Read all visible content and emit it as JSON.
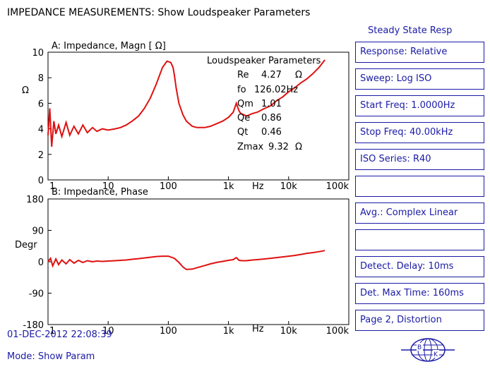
{
  "header": {
    "title": "IMPEDANCE  MEASUREMENTS:  Show  Loudspeaker    Parameters"
  },
  "mode_panel": {
    "label": "Steady State Resp"
  },
  "side_buttons": [
    "Response: Relative",
    "Sweep: Log ISO",
    "Start Freq: 1.0000Hz",
    "Stop Freq:  40.00kHz",
    "ISO Series: R40",
    "",
    "Avg.: Complex Linear",
    "",
    "Detect. Delay: 10ms",
    "Det. Max Time: 160ms",
    "Page 2, Distortion"
  ],
  "footer": {
    "datetime": "01-DEC-2012 22:08:39",
    "mode": "Mode: Show Param",
    "logo_letters": [
      "B",
      "K"
    ]
  },
  "params": {
    "title": "Loudspeaker Parameters",
    "rows": [
      {
        "label": "Re",
        "value": "4.27",
        "unit": "Ω"
      },
      {
        "label": "fo",
        "value": "126.02Hz",
        "unit": ""
      },
      {
        "label": "Qm",
        "value": "1.01",
        "unit": ""
      },
      {
        "label": "Qe",
        "value": "0.86",
        "unit": ""
      },
      {
        "label": "Qt",
        "value": "0.46",
        "unit": ""
      },
      {
        "label": "Zmax",
        "value": "9.32",
        "unit": "Ω"
      }
    ]
  },
  "colors": {
    "trace": "#e01010",
    "accent": "#1a1aa6",
    "axis": "#000000"
  },
  "chart_data": [
    {
      "type": "line",
      "title": "A:   Impedance, Magn [    Ω]",
      "ylabel": "Ω",
      "xlabel": "Hz",
      "xscale": "log",
      "xlim": [
        1,
        100000
      ],
      "ylim": [
        0,
        10
      ],
      "yticks": [
        "0",
        "2",
        "4",
        "6",
        "8",
        "10"
      ],
      "xticks": [
        "1",
        "10",
        "100",
        "1k",
        "10k",
        "100k"
      ],
      "series": [
        {
          "x": [
            1,
            1.07,
            1.15,
            1.25,
            1.35,
            1.5,
            1.7,
            2,
            2.3,
            2.7,
            3.2,
            3.8,
            4.5,
            5.5,
            6.5,
            8,
            10,
            13,
            16,
            20,
            25,
            32,
            40,
            50,
            63,
            80,
            95,
            110,
            120,
            126,
            135,
            150,
            175,
            200,
            250,
            300,
            400,
            500,
            630,
            800,
            1000,
            1200,
            1350,
            1500,
            1600,
            1800,
            2000,
            2500,
            3000,
            4000,
            5000,
            6300,
            8000,
            10000,
            12500,
            16000,
            20000,
            25000,
            32000,
            40000
          ],
          "y": [
            3.5,
            5.6,
            2.6,
            4.6,
            3.6,
            4.3,
            3.4,
            4.5,
            3.5,
            4.2,
            3.6,
            4.3,
            3.7,
            4.1,
            3.8,
            4.0,
            3.9,
            4.0,
            4.1,
            4.3,
            4.6,
            5.0,
            5.6,
            6.4,
            7.5,
            8.8,
            9.3,
            9.2,
            8.8,
            8.2,
            7.2,
            6.0,
            5.1,
            4.6,
            4.2,
            4.1,
            4.1,
            4.2,
            4.4,
            4.6,
            4.9,
            5.3,
            6.0,
            5.4,
            5.2,
            5.1,
            5.0,
            5.2,
            5.3,
            5.6,
            5.8,
            6.2,
            6.5,
            6.9,
            7.2,
            7.6,
            7.9,
            8.3,
            8.8,
            9.4
          ]
        }
      ]
    },
    {
      "type": "line",
      "title": "B:   Impedance, Phase",
      "ylabel": "Degr",
      "xlabel": "Hz",
      "xscale": "log",
      "xlim": [
        1,
        100000
      ],
      "ylim": [
        -180,
        180
      ],
      "yticks": [
        "-180",
        "-90",
        "0",
        "90",
        "180"
      ],
      "xticks": [
        "1",
        "10",
        "100",
        "1k",
        "10k",
        "100k"
      ],
      "series": [
        {
          "x": [
            1,
            1.1,
            1.2,
            1.35,
            1.5,
            1.7,
            2,
            2.3,
            2.7,
            3.2,
            3.8,
            4.5,
            5.5,
            6.5,
            8,
            10,
            13,
            16,
            20,
            25,
            32,
            40,
            50,
            63,
            80,
            100,
            126,
            150,
            175,
            200,
            250,
            300,
            400,
            500,
            630,
            800,
            1000,
            1200,
            1350,
            1500,
            1700,
            2000,
            2500,
            3000,
            4000,
            5000,
            6300,
            8000,
            10000,
            12500,
            16000,
            20000,
            25000,
            32000,
            40000
          ],
          "y": [
            0,
            10,
            -12,
            8,
            -8,
            5,
            -6,
            6,
            -4,
            4,
            -2,
            3,
            0,
            2,
            1,
            2,
            3,
            4,
            5,
            7,
            9,
            11,
            13,
            15,
            16,
            16,
            10,
            -2,
            -15,
            -22,
            -21,
            -17,
            -11,
            -6,
            -2,
            1,
            4,
            6,
            12,
            4,
            3,
            3,
            5,
            6,
            8,
            10,
            12,
            14,
            16,
            18,
            21,
            24,
            26,
            29,
            32
          ]
        }
      ]
    }
  ]
}
